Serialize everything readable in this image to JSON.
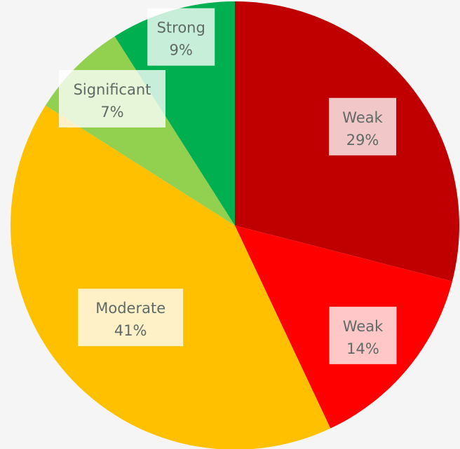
{
  "chart_data": {
    "type": "pie",
    "slices": [
      {
        "label": "Weak",
        "value_label": "29%",
        "value": 29,
        "color": "#c00000"
      },
      {
        "label": "Weak",
        "value_label": "14%",
        "value": 14,
        "color": "#ff0000"
      },
      {
        "label": "Moderate",
        "value_label": "41%",
        "value": 41,
        "color": "#ffc000"
      },
      {
        "label": "Significant",
        "value_label": "7%",
        "value": 7,
        "color": "#92d050"
      },
      {
        "label": "Strong",
        "value_label": "9%",
        "value": 9,
        "color": "#00b050"
      }
    ],
    "start_angle_deg": 0,
    "direction": "clockwise",
    "legend": "none"
  }
}
